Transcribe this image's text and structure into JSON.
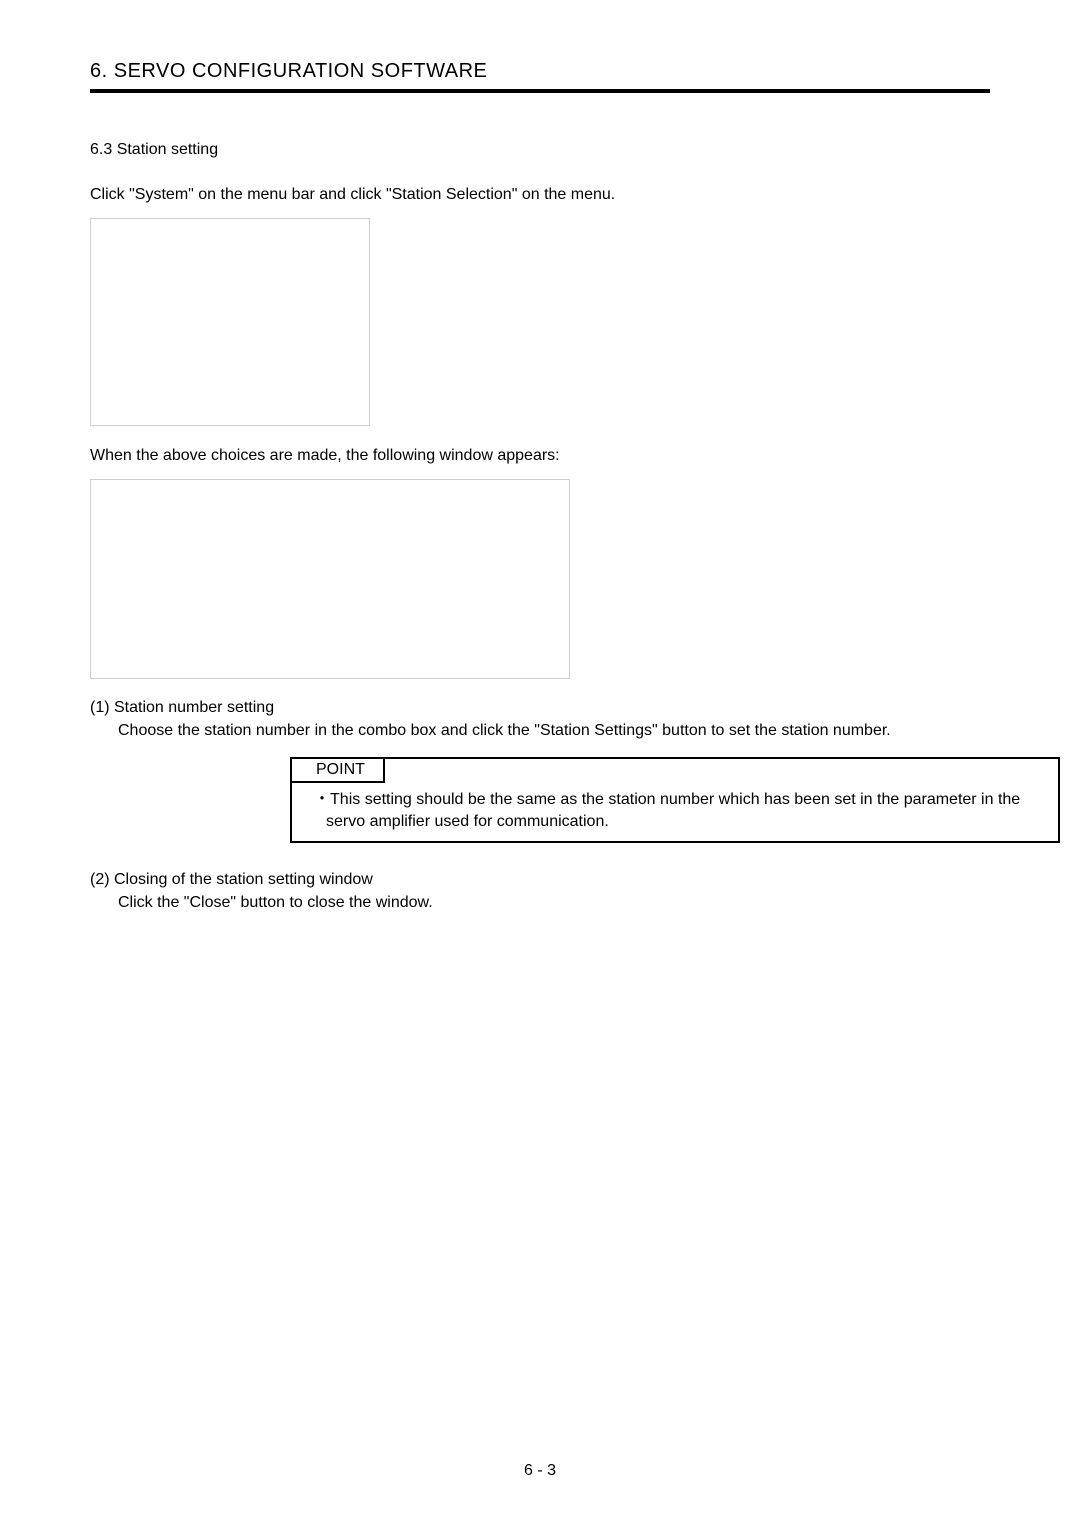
{
  "header": {
    "chapter_title": "6. SERVO CONFIGURATION SOFTWARE"
  },
  "section": {
    "number_title": "6.3 Station setting",
    "intro_prefix": "Click ",
    "intro_menu1_pre": "\"",
    "intro_menu1": "System",
    "intro_menu1_post": "\"",
    "intro_mid": " on the menu bar and click ",
    "intro_menu2_pre": " \"",
    "intro_menu2": "Station Selection",
    "intro_menu2_post": "\"",
    "intro_suffix": " on the menu.",
    "after_box1": "When the above choices are made, the following window appears:"
  },
  "item1": {
    "heading": "(1) Station number setting",
    "body_pre": "Choose the station number in the combo box and click the ",
    "body_btn_pre": " \"",
    "body_btn": "Station Settings",
    "body_btn_post": "\"",
    "body_suf": " button to set the station number."
  },
  "point": {
    "label": "POINT",
    "bullet": "・",
    "text": "This setting should be the same as the station number which has been set in the parameter in the servo amplifier used for communication."
  },
  "item2": {
    "heading": "(2) Closing of the station setting window",
    "body_pre": "Click the ",
    "body_btn_pre": "\"",
    "body_btn": "Close",
    "body_btn_post": "\"",
    "body_suf": " button to close the window."
  },
  "footer": {
    "page_num": "6 -  3"
  },
  "style": {
    "border_color": "#000000",
    "placeholder_border": "#cfcfcf",
    "background": "#ffffff"
  }
}
